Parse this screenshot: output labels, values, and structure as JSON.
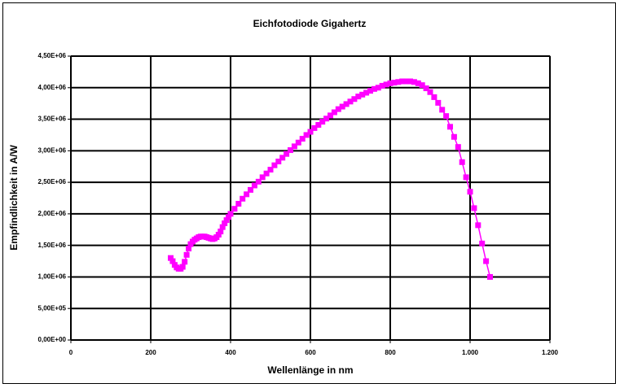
{
  "chart_data": {
    "type": "scatter",
    "lines": true,
    "title": "Eichfotodiode Gigahertz",
    "x_label": "Wellenlänge in nm",
    "y_label": "Empfindlichkeit in A/W",
    "color": "#ff00ff",
    "grid": true,
    "xlim": [
      0,
      1200
    ],
    "xticks": [
      0,
      200,
      400,
      600,
      800,
      {
        "value": 1000,
        "label": "1.000"
      },
      {
        "value": 1200,
        "label": "1.200"
      }
    ],
    "ylim": [
      0,
      4500000
    ],
    "yticks": [
      {
        "value": 0,
        "label": "0,00E+00"
      },
      {
        "value": 500000,
        "label": "5,00E+05"
      },
      {
        "value": 1000000,
        "label": "1,00E+06"
      },
      {
        "value": 1500000,
        "label": "1,50E+06"
      },
      {
        "value": 2000000,
        "label": "2,00E+06"
      },
      {
        "value": 2500000,
        "label": "2,50E+06"
      },
      {
        "value": 3000000,
        "label": "3,00E+06"
      },
      {
        "value": 3500000,
        "label": "3,50E+06"
      },
      {
        "value": 4000000,
        "label": "4,00E+06"
      },
      {
        "value": 4500000,
        "label": "4,50E+06"
      }
    ],
    "x": [
      250,
      255,
      260,
      265,
      270,
      275,
      280,
      285,
      290,
      295,
      300,
      305,
      310,
      315,
      320,
      325,
      330,
      335,
      340,
      345,
      350,
      355,
      360,
      365,
      370,
      375,
      380,
      385,
      390,
      395,
      400,
      410,
      420,
      430,
      440,
      450,
      460,
      470,
      480,
      490,
      500,
      510,
      520,
      530,
      540,
      550,
      560,
      570,
      580,
      590,
      600,
      610,
      620,
      630,
      640,
      650,
      660,
      670,
      680,
      690,
      700,
      710,
      720,
      730,
      740,
      750,
      760,
      770,
      780,
      790,
      800,
      810,
      820,
      830,
      840,
      850,
      860,
      870,
      880,
      890,
      900,
      910,
      920,
      930,
      940,
      950,
      960,
      970,
      980,
      990,
      1000,
      1010,
      1020,
      1030,
      1040,
      1050
    ],
    "values": [
      1300000,
      1250000,
      1190000,
      1150000,
      1130000,
      1130000,
      1160000,
      1240000,
      1350000,
      1450000,
      1520000,
      1560000,
      1590000,
      1610000,
      1630000,
      1640000,
      1640000,
      1640000,
      1630000,
      1620000,
      1610000,
      1600000,
      1610000,
      1630000,
      1670000,
      1720000,
      1790000,
      1850000,
      1900000,
      1950000,
      2000000,
      2080000,
      2160000,
      2240000,
      2310000,
      2380000,
      2450000,
      2510000,
      2580000,
      2640000,
      2700000,
      2770000,
      2830000,
      2890000,
      2950000,
      3010000,
      3070000,
      3130000,
      3190000,
      3250000,
      3300000,
      3360000,
      3410000,
      3460000,
      3510000,
      3560000,
      3610000,
      3660000,
      3700000,
      3740000,
      3780000,
      3820000,
      3860000,
      3890000,
      3920000,
      3950000,
      3980000,
      4000000,
      4030000,
      4050000,
      4070000,
      4080000,
      4090000,
      4100000,
      4100000,
      4100000,
      4090000,
      4070000,
      4040000,
      3990000,
      3930000,
      3850000,
      3760000,
      3650000,
      3550000,
      3380000,
      3220000,
      3060000,
      2820000,
      2580000,
      2350000,
      2090000,
      1820000,
      1530000,
      1250000,
      1000000
    ]
  }
}
